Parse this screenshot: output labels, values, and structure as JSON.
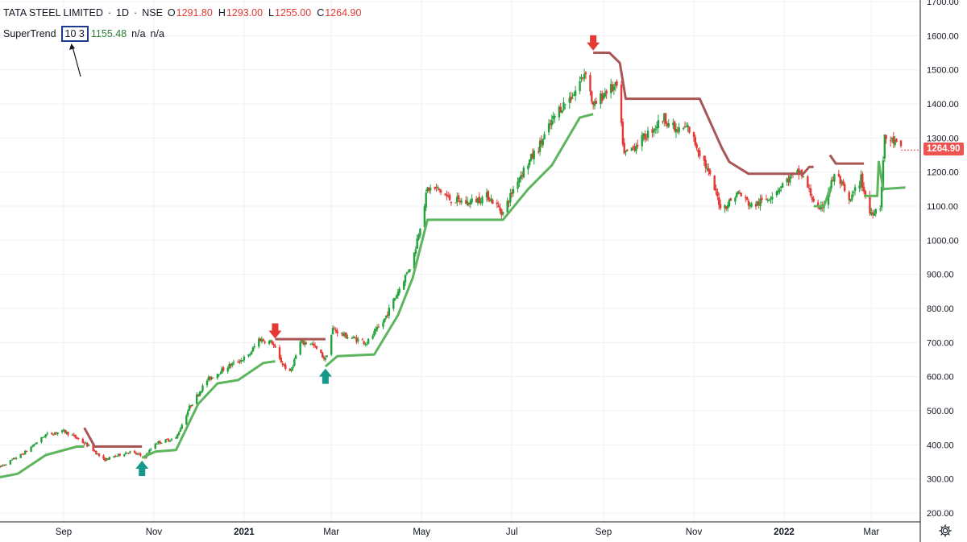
{
  "header": {
    "symbol": "TATA STEEL LIMITED",
    "sep1": "·",
    "interval": "1D",
    "sep2": "·",
    "exchange": "NSE",
    "o_key": "O",
    "o_val": "1291.80",
    "h_key": "H",
    "h_val": "1293.00",
    "l_key": "L",
    "l_val": "1255.00",
    "c_key": "C",
    "c_val": "1264.90"
  },
  "indicator": {
    "name": "SuperTrend",
    "params": "10 3",
    "value": "1155.48",
    "na1": "n/a",
    "na2": "n/a"
  },
  "price_tag": "1264.90",
  "colors": {
    "up": "#26a69a",
    "up_candle": "#22a33a",
    "down_candle": "#e53935",
    "supertrend_up": "#5db55d",
    "supertrend_down": "#a85656",
    "buy_arrow": "#16998a",
    "sell_arrow": "#e53935",
    "grid": "#eef0f3",
    "axis_text": "#131722",
    "annotation_box": "#1e3a8a"
  },
  "icons": {
    "settings": "gear-icon",
    "buy": "up-arrow-icon",
    "sell": "down-arrow-icon",
    "pointer": "annotation-arrow-icon"
  },
  "chart_data": {
    "type": "candlestick",
    "x_tick_labels": [
      "Sep",
      "Nov",
      "2021",
      "Mar",
      "May",
      "Jul",
      "Sep",
      "Nov",
      "2022",
      "Mar"
    ],
    "y_tick_labels": [
      "200.00",
      "300.00",
      "400.00",
      "500.00",
      "600.00",
      "700.00",
      "800.00",
      "900.00",
      "1000.00",
      "1100.00",
      "1200.00",
      "1300.00",
      "1400.00",
      "1500.00",
      "1600.00",
      "1700.00"
    ],
    "ylim": [
      175,
      1700
    ],
    "grid": true,
    "last_close": 1264.9,
    "price_path": [
      [
        "2020-07-20",
        335
      ],
      [
        "2020-08-05",
        375
      ],
      [
        "2020-08-20",
        430
      ],
      [
        "2020-09-01",
        440
      ],
      [
        "2020-09-08",
        425
      ],
      [
        "2020-09-20",
        390
      ],
      [
        "2020-09-28",
        355
      ],
      [
        "2020-10-15",
        380
      ],
      [
        "2020-10-26",
        365
      ],
      [
        "2020-11-02",
        405
      ],
      [
        "2020-11-16",
        420
      ],
      [
        "2020-11-25",
        510
      ],
      [
        "2020-12-07",
        590
      ],
      [
        "2020-12-21",
        630
      ],
      [
        "2021-01-04",
        660
      ],
      [
        "2021-01-11",
        710
      ],
      [
        "2021-01-20",
        700
      ],
      [
        "2021-01-25",
        650
      ],
      [
        "2021-02-01",
        610
      ],
      [
        "2021-02-08",
        700
      ],
      [
        "2021-02-15",
        700
      ],
      [
        "2021-02-25",
        650
      ],
      [
        "2021-03-02",
        740
      ],
      [
        "2021-03-10",
        720
      ],
      [
        "2021-03-25",
        700
      ],
      [
        "2021-04-05",
        760
      ],
      [
        "2021-04-15",
        850
      ],
      [
        "2021-04-25",
        940
      ],
      [
        "2021-05-05",
        1150
      ],
      [
        "2021-05-12",
        1150
      ],
      [
        "2021-05-20",
        1120
      ],
      [
        "2021-06-01",
        1110
      ],
      [
        "2021-06-15",
        1130
      ],
      [
        "2021-06-25",
        1080
      ],
      [
        "2021-07-05",
        1180
      ],
      [
        "2021-07-20",
        1280
      ],
      [
        "2021-08-01",
        1380
      ],
      [
        "2021-08-12",
        1430
      ],
      [
        "2021-08-20",
        1500
      ],
      [
        "2021-08-25",
        1390
      ],
      [
        "2021-09-03",
        1440
      ],
      [
        "2021-09-10",
        1450
      ],
      [
        "2021-09-15",
        1250
      ],
      [
        "2021-09-28",
        1300
      ],
      [
        "2021-10-12",
        1360
      ],
      [
        "2021-10-20",
        1320
      ],
      [
        "2021-10-28",
        1330
      ],
      [
        "2021-11-08",
        1230
      ],
      [
        "2021-11-20",
        1090
      ],
      [
        "2021-12-01",
        1140
      ],
      [
        "2021-12-10",
        1100
      ],
      [
        "2021-12-20",
        1120
      ],
      [
        "2022-01-04",
        1180
      ],
      [
        "2022-01-12",
        1200
      ],
      [
        "2022-01-25",
        1080
      ],
      [
        "2022-02-05",
        1200
      ],
      [
        "2022-02-14",
        1110
      ],
      [
        "2022-02-22",
        1180
      ],
      [
        "2022-02-28",
        1080
      ],
      [
        "2022-03-07",
        1100
      ],
      [
        "2022-03-10",
        1300
      ],
      [
        "2022-03-16",
        1290
      ],
      [
        "2022-03-21",
        1264.9
      ]
    ],
    "supertrend_segments": [
      {
        "trend": "up",
        "points": [
          [
            "2020-07-20",
            305
          ],
          [
            "2020-08-01",
            315
          ],
          [
            "2020-08-20",
            370
          ],
          [
            "2020-09-10",
            395
          ],
          [
            "2020-09-15",
            395
          ]
        ]
      },
      {
        "trend": "down",
        "points": [
          [
            "2020-09-15",
            450
          ],
          [
            "2020-09-22",
            395
          ],
          [
            "2020-10-24",
            395
          ]
        ]
      },
      {
        "trend": "up",
        "points": [
          [
            "2020-10-24",
            362
          ],
          [
            "2020-11-02",
            380
          ],
          [
            "2020-11-16",
            385
          ],
          [
            "2020-12-01",
            520
          ],
          [
            "2020-12-14",
            580
          ],
          [
            "2020-12-28",
            590
          ],
          [
            "2021-01-14",
            640
          ],
          [
            "2021-01-22",
            645
          ]
        ]
      },
      {
        "trend": "down",
        "points": [
          [
            "2021-01-22",
            710
          ],
          [
            "2021-02-25",
            710
          ]
        ]
      },
      {
        "trend": "up",
        "points": [
          [
            "2021-02-25",
            630
          ],
          [
            "2021-03-05",
            660
          ],
          [
            "2021-03-30",
            665
          ],
          [
            "2021-04-15",
            780
          ],
          [
            "2021-04-25",
            890
          ],
          [
            "2021-05-05",
            1060
          ],
          [
            "2021-06-25",
            1060
          ],
          [
            "2021-07-12",
            1150
          ],
          [
            "2021-07-28",
            1220
          ],
          [
            "2021-08-16",
            1360
          ],
          [
            "2021-08-25",
            1370
          ]
        ]
      },
      {
        "trend": "down",
        "points": [
          [
            "2021-08-25",
            1550
          ],
          [
            "2021-09-05",
            1550
          ],
          [
            "2021-09-12",
            1520
          ],
          [
            "2021-09-16",
            1415
          ],
          [
            "2021-11-05",
            1415
          ],
          [
            "2021-11-20",
            1270
          ],
          [
            "2021-11-25",
            1230
          ],
          [
            "2021-12-08",
            1195
          ],
          [
            "2022-01-14",
            1195
          ],
          [
            "2022-01-18",
            1215
          ],
          [
            "2022-01-21",
            1215
          ]
        ]
      },
      {
        "trend": "up",
        "points": [
          [
            "2022-01-21",
            1100
          ],
          [
            "2022-01-28",
            1100
          ],
          [
            "2022-02-01",
            1150
          ]
        ]
      },
      {
        "trend": "down",
        "points": [
          [
            "2022-02-01",
            1250
          ],
          [
            "2022-02-05",
            1225
          ],
          [
            "2022-02-24",
            1225
          ]
        ]
      },
      {
        "trend": "up",
        "points": [
          [
            "2022-02-24",
            1130
          ],
          [
            "2022-03-05",
            1130
          ],
          [
            "2022-03-06",
            1230
          ],
          [
            "2022-03-09",
            1150
          ],
          [
            "2022-03-24",
            1155
          ]
        ]
      }
    ],
    "signals": [
      {
        "type": "buy",
        "date": "2020-10-24",
        "price": 330
      },
      {
        "type": "sell",
        "date": "2021-01-22",
        "price": 735
      },
      {
        "type": "buy",
        "date": "2021-02-25",
        "price": 600
      },
      {
        "type": "sell",
        "date": "2021-08-25",
        "price": 1580
      }
    ]
  }
}
